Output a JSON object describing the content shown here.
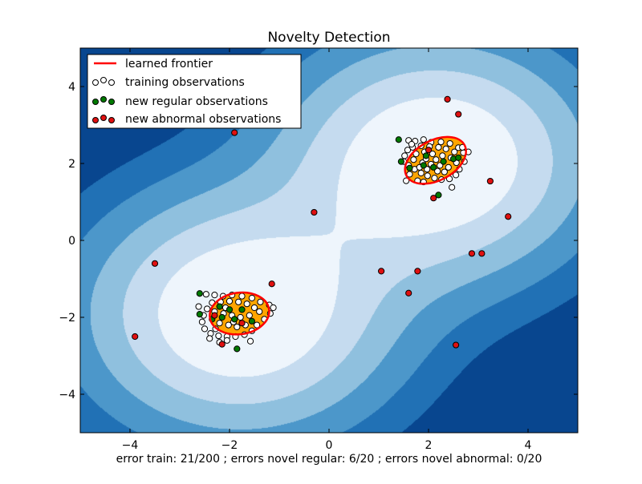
{
  "chart_data": {
    "type": "scatter",
    "title": "Novelty Detection",
    "xlabel": "error train: 21/200 ; errors novel regular: 6/20 ; errors novel abnormal: 0/20",
    "ylabel": "",
    "xlim": [
      -5,
      5
    ],
    "ylim": [
      -5,
      5
    ],
    "x_ticks": [
      -4,
      -2,
      0,
      2,
      4
    ],
    "y_ticks": [
      -4,
      -2,
      0,
      2,
      4
    ],
    "tick_labels_x": [
      "−4",
      "−2",
      "0",
      "2",
      "4"
    ],
    "tick_labels_y": [
      "−4",
      "−2",
      "0",
      "2",
      "4"
    ],
    "grid": false,
    "legend_position": "top-left",
    "background": {
      "type": "filled-contour",
      "colormap": "Blues_r",
      "colors": [
        "#08468f",
        "#2171b5",
        "#4c97ca",
        "#8fc0de",
        "#c5dbef",
        "#eef5fc"
      ],
      "frontier_fill": "#ffa500"
    },
    "legend": [
      {
        "label": "learned frontier",
        "marker": "line",
        "color": "#ff0000"
      },
      {
        "label": "training observations",
        "marker": "circle",
        "color": "#ffffff"
      },
      {
        "label": "new regular observations",
        "marker": "circle",
        "color": "#007a00"
      },
      {
        "label": "new abnormal observations",
        "marker": "circle",
        "color": "#e01010"
      }
    ],
    "frontier": {
      "color": "#ff0000",
      "regions": [
        {
          "cx": 2.14,
          "cy": 2.08,
          "rx": 0.66,
          "ry": 0.52,
          "rotation_deg": -28
        },
        {
          "cx": -1.8,
          "cy": -1.9,
          "rx": 0.6,
          "ry": 0.54,
          "rotation_deg": -8
        }
      ]
    },
    "series": [
      {
        "role": "training",
        "color": "#ffffff",
        "points": [
          [
            1.6,
            2.6
          ],
          [
            1.73,
            2.58
          ],
          [
            1.9,
            2.62
          ],
          [
            2.05,
            2.55
          ],
          [
            2.25,
            2.56
          ],
          [
            2.43,
            2.52
          ],
          [
            2.6,
            2.41
          ],
          [
            2.7,
            2.28
          ],
          [
            2.52,
            2.3
          ],
          [
            2.35,
            2.38
          ],
          [
            2.2,
            2.42
          ],
          [
            2.02,
            2.44
          ],
          [
            1.85,
            2.46
          ],
          [
            1.68,
            2.42
          ],
          [
            1.58,
            2.35
          ],
          [
            1.52,
            2.2
          ],
          [
            1.5,
            2.05
          ],
          [
            1.6,
            1.95
          ],
          [
            1.72,
            1.85
          ],
          [
            1.85,
            1.75
          ],
          [
            1.98,
            1.68
          ],
          [
            2.12,
            1.62
          ],
          [
            2.26,
            1.58
          ],
          [
            2.42,
            1.6
          ],
          [
            2.55,
            1.7
          ],
          [
            2.62,
            1.85
          ],
          [
            2.72,
            2.05
          ],
          [
            2.8,
            2.3
          ],
          [
            1.62,
            1.72
          ],
          [
            1.78,
            1.55
          ],
          [
            1.9,
            1.52
          ],
          [
            2.47,
            1.38
          ],
          [
            1.75,
            2.25
          ],
          [
            1.92,
            2.3
          ],
          [
            2.08,
            2.25
          ],
          [
            2.28,
            2.2
          ],
          [
            2.45,
            2.15
          ],
          [
            2.56,
            2.02
          ],
          [
            2.4,
            1.9
          ],
          [
            2.23,
            1.95
          ],
          [
            2.05,
            1.98
          ],
          [
            1.88,
            2.02
          ],
          [
            1.7,
            2.1
          ],
          [
            1.82,
            1.9
          ],
          [
            1.97,
            1.85
          ],
          [
            2.18,
            1.8
          ],
          [
            2.32,
            1.78
          ],
          [
            1.55,
            1.55
          ],
          [
            2.68,
            2.42
          ],
          [
            1.66,
            2.5
          ],
          [
            2.15,
            2.1
          ],
          [
            1.95,
            2.12
          ],
          [
            -2.47,
            -1.4
          ],
          [
            -2.3,
            -1.42
          ],
          [
            -2.13,
            -1.45
          ],
          [
            -1.95,
            -1.42
          ],
          [
            -1.75,
            -1.45
          ],
          [
            -1.55,
            -1.5
          ],
          [
            -1.38,
            -1.6
          ],
          [
            -1.2,
            -1.68
          ],
          [
            -1.12,
            -1.75
          ],
          [
            -1.18,
            -1.9
          ],
          [
            -1.3,
            -2.05
          ],
          [
            -1.45,
            -2.2
          ],
          [
            -1.55,
            -2.35
          ],
          [
            -1.7,
            -2.45
          ],
          [
            -1.88,
            -2.5
          ],
          [
            -2.05,
            -2.5
          ],
          [
            -2.22,
            -2.48
          ],
          [
            -2.38,
            -2.42
          ],
          [
            -2.5,
            -2.3
          ],
          [
            -2.55,
            -2.12
          ],
          [
            -2.52,
            -1.95
          ],
          [
            -2.45,
            -1.78
          ],
          [
            -2.35,
            -1.62
          ],
          [
            -2.18,
            -1.6
          ],
          [
            -2.0,
            -1.58
          ],
          [
            -1.82,
            -1.6
          ],
          [
            -1.65,
            -1.65
          ],
          [
            -1.5,
            -1.75
          ],
          [
            -1.6,
            -1.95
          ],
          [
            -1.78,
            -2.0
          ],
          [
            -1.95,
            -1.95
          ],
          [
            -2.12,
            -1.9
          ],
          [
            -2.3,
            -1.85
          ],
          [
            -2.2,
            -2.15
          ],
          [
            -2.02,
            -2.2
          ],
          [
            -1.85,
            -2.25
          ],
          [
            -1.68,
            -2.2
          ],
          [
            -1.4,
            -1.85
          ],
          [
            -2.4,
            -2.55
          ],
          [
            -2.2,
            -2.65
          ],
          [
            -2.05,
            -2.6
          ],
          [
            -1.58,
            -2.62
          ],
          [
            -2.62,
            -1.72
          ],
          [
            -2.28,
            -2.3
          ],
          [
            -1.92,
            -2.12
          ],
          [
            -2.08,
            -1.75
          ]
        ]
      },
      {
        "role": "new regular",
        "color": "#007a00",
        "points": [
          [
            1.4,
            2.62
          ],
          [
            1.45,
            2.05
          ],
          [
            1.62,
            1.88
          ],
          [
            1.9,
            1.95
          ],
          [
            2.1,
            1.9
          ],
          [
            2.3,
            2.05
          ],
          [
            2.5,
            2.12
          ],
          [
            1.95,
            2.2
          ],
          [
            2.2,
            1.18
          ],
          [
            2.6,
            2.15
          ],
          [
            -2.6,
            -1.38
          ],
          [
            -2.6,
            -1.92
          ],
          [
            -2.35,
            -2.05
          ],
          [
            -2.15,
            -2.0
          ],
          [
            -1.9,
            -2.05
          ],
          [
            -1.75,
            -1.8
          ],
          [
            -2.0,
            -1.8
          ],
          [
            -1.55,
            -2.1
          ],
          [
            -2.2,
            -1.72
          ],
          [
            -1.85,
            -2.82
          ]
        ]
      },
      {
        "role": "new abnormal",
        "color": "#e01010",
        "points": [
          [
            -1.9,
            2.8
          ],
          [
            2.38,
            3.67
          ],
          [
            2.6,
            3.28
          ],
          [
            3.24,
            1.54
          ],
          [
            2.1,
            1.1
          ],
          [
            -0.3,
            0.73
          ],
          [
            3.6,
            0.62
          ],
          [
            -3.5,
            -0.6
          ],
          [
            -1.15,
            -1.13
          ],
          [
            1.05,
            -0.8
          ],
          [
            1.78,
            -0.8
          ],
          [
            2.87,
            -0.34
          ],
          [
            3.07,
            -0.34
          ],
          [
            1.6,
            -1.37
          ],
          [
            -3.9,
            -2.5
          ],
          [
            -2.15,
            -2.7
          ],
          [
            2.55,
            -2.72
          ],
          [
            -2.3,
            -1.95
          ],
          [
            -1.75,
            -2.15
          ],
          [
            2.0,
            2.35
          ]
        ]
      }
    ]
  }
}
